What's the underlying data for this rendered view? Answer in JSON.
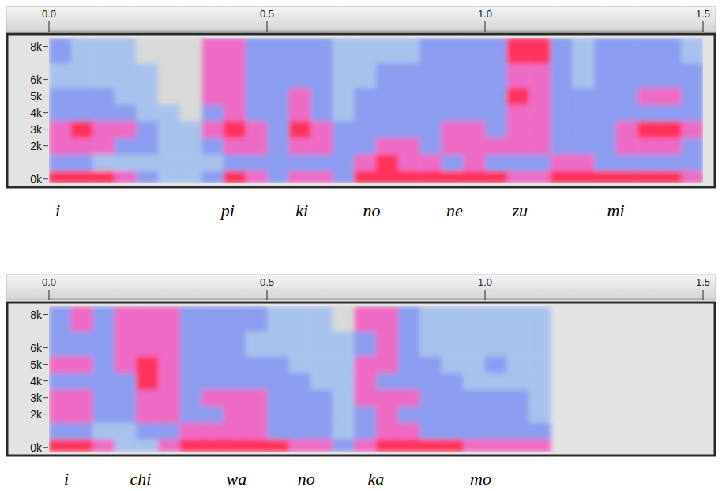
{
  "chart_data": [
    {
      "type": "heatmap",
      "xlim": [
        0,
        1.5
      ],
      "xticks": [
        {
          "value": 0,
          "label": "0.0"
        },
        {
          "value": 0.5,
          "label": "0.5"
        },
        {
          "value": 1.0,
          "label": "1.0"
        },
        {
          "value": 1.5,
          "label": "1.5"
        }
      ],
      "ylim": [
        -250,
        8500
      ],
      "yticks": [
        {
          "value": 0,
          "label": "0k"
        },
        {
          "value": 2000,
          "label": "2k"
        },
        {
          "value": 3000,
          "label": "3k"
        },
        {
          "value": 4000,
          "label": "4k"
        },
        {
          "value": 5000,
          "label": "5k"
        },
        {
          "value": 6000,
          "label": "6k"
        },
        {
          "value": 8000,
          "label": "8k"
        }
      ],
      "x_edges": [
        0,
        0.05,
        0.1,
        0.15,
        0.2,
        0.25,
        0.3,
        0.35,
        0.4,
        0.45,
        0.5,
        0.55,
        0.6,
        0.65,
        0.7,
        0.75,
        0.8,
        0.85,
        0.9,
        0.95,
        1.0,
        1.05,
        1.1,
        1.15,
        1.2,
        1.25,
        1.3,
        1.35,
        1.4,
        1.45,
        1.5
      ],
      "y_edges": [
        -250,
        500,
        1500,
        2500,
        3500,
        4500,
        5500,
        7000,
        8500
      ],
      "zlim": [
        0,
        4
      ],
      "values": [
        [
          4,
          4,
          4,
          3,
          2,
          1,
          1,
          2,
          4,
          3,
          2,
          3,
          3,
          2,
          4,
          4,
          4,
          4,
          4,
          4,
          4,
          3,
          3,
          4,
          4,
          4,
          4,
          4,
          4,
          3
        ],
        [
          2,
          2,
          1,
          1,
          1,
          1,
          1,
          1,
          2,
          2,
          2,
          2,
          2,
          2,
          3,
          4,
          3,
          3,
          2,
          3,
          2,
          2,
          2,
          3,
          3,
          2,
          2,
          2,
          2,
          2
        ],
        [
          3,
          3,
          3,
          2,
          2,
          1,
          1,
          2,
          3,
          3,
          2,
          3,
          3,
          2,
          2,
          3,
          3,
          2,
          3,
          3,
          3,
          3,
          3,
          2,
          2,
          2,
          3,
          3,
          3,
          2
        ],
        [
          3,
          4,
          3,
          3,
          2,
          1,
          1,
          3,
          4,
          3,
          2,
          4,
          3,
          2,
          2,
          2,
          2,
          2,
          3,
          3,
          2,
          3,
          3,
          2,
          2,
          2,
          3,
          4,
          4,
          3
        ],
        [
          2,
          2,
          2,
          2,
          1,
          1,
          0,
          2,
          3,
          2,
          2,
          3,
          2,
          1,
          2,
          2,
          2,
          2,
          2,
          2,
          2,
          3,
          3,
          2,
          2,
          2,
          2,
          2,
          2,
          2
        ],
        [
          2,
          2,
          2,
          1,
          1,
          0,
          0,
          3,
          3,
          2,
          2,
          3,
          2,
          1,
          2,
          2,
          2,
          2,
          2,
          2,
          2,
          4,
          3,
          2,
          2,
          2,
          2,
          3,
          3,
          2
        ],
        [
          1,
          1,
          1,
          1,
          1,
          0,
          0,
          3,
          3,
          2,
          2,
          2,
          2,
          1,
          1,
          2,
          2,
          2,
          2,
          2,
          2,
          3,
          3,
          2,
          1,
          2,
          2,
          2,
          2,
          2
        ],
        [
          2,
          1,
          1,
          1,
          0,
          0,
          0,
          3,
          3,
          2,
          2,
          2,
          2,
          1,
          1,
          1,
          1,
          2,
          2,
          2,
          2,
          4,
          4,
          2,
          1,
          2,
          2,
          2,
          2,
          1
        ]
      ],
      "annotations": [
        {
          "text": "i",
          "x": 0.02
        },
        {
          "text": "pi",
          "x": 0.41
        },
        {
          "text": "ki",
          "x": 0.58
        },
        {
          "text": "no",
          "x": 0.74
        },
        {
          "text": "ne",
          "x": 0.93
        },
        {
          "text": "zu",
          "x": 1.08
        },
        {
          "text": "mi",
          "x": 1.3
        }
      ]
    },
    {
      "type": "heatmap",
      "xlim": [
        0,
        1.5
      ],
      "xticks": [
        {
          "value": 0,
          "label": "0.0"
        },
        {
          "value": 0.5,
          "label": "0.5"
        },
        {
          "value": 1.0,
          "label": "1.0"
        },
        {
          "value": 1.5,
          "label": "1.5"
        }
      ],
      "ylim": [
        -250,
        8500
      ],
      "yticks": [
        {
          "value": 0,
          "label": "0k"
        },
        {
          "value": 2000,
          "label": "2k"
        },
        {
          "value": 3000,
          "label": "3k"
        },
        {
          "value": 4000,
          "label": "4k"
        },
        {
          "value": 5000,
          "label": "5k"
        },
        {
          "value": 6000,
          "label": "6k"
        },
        {
          "value": 8000,
          "label": "8k"
        }
      ],
      "x_edges": [
        0,
        0.05,
        0.1,
        0.15,
        0.2,
        0.25,
        0.3,
        0.35,
        0.4,
        0.45,
        0.5,
        0.55,
        0.6,
        0.65,
        0.7,
        0.75,
        0.8,
        0.85,
        0.9,
        0.95,
        1.0,
        1.05,
        1.1,
        1.15,
        1.2,
        1.25,
        1.3,
        1.35,
        1.4,
        1.45,
        1.5
      ],
      "y_edges": [
        -250,
        500,
        1500,
        2500,
        3500,
        4500,
        5500,
        7000,
        8500
      ],
      "zlim": [
        0,
        4
      ],
      "values": [
        [
          4,
          4,
          3,
          1,
          1,
          3,
          4,
          4,
          4,
          4,
          4,
          3,
          3,
          2,
          3,
          4,
          4,
          4,
          4,
          3,
          3,
          3,
          3,
          null,
          null,
          null,
          null,
          null,
          null,
          null
        ],
        [
          2,
          2,
          1,
          1,
          2,
          2,
          3,
          3,
          3,
          3,
          2,
          2,
          2,
          1,
          2,
          3,
          3,
          2,
          2,
          2,
          2,
          2,
          2,
          null,
          null,
          null,
          null,
          null,
          null,
          null
        ],
        [
          3,
          3,
          2,
          2,
          3,
          3,
          2,
          2,
          3,
          3,
          2,
          2,
          2,
          1,
          2,
          3,
          2,
          2,
          2,
          2,
          2,
          2,
          1,
          null,
          null,
          null,
          null,
          null,
          null,
          null
        ],
        [
          3,
          3,
          2,
          2,
          3,
          3,
          2,
          3,
          3,
          3,
          2,
          2,
          2,
          1,
          3,
          3,
          3,
          2,
          2,
          2,
          2,
          2,
          1,
          null,
          null,
          null,
          null,
          null,
          null,
          null
        ],
        [
          2,
          2,
          2,
          2,
          4,
          3,
          2,
          2,
          2,
          2,
          2,
          2,
          1,
          1,
          3,
          2,
          2,
          2,
          2,
          1,
          1,
          1,
          1,
          null,
          null,
          null,
          null,
          null,
          null,
          null
        ],
        [
          3,
          3,
          2,
          3,
          4,
          3,
          2,
          2,
          2,
          2,
          2,
          1,
          1,
          1,
          3,
          3,
          2,
          2,
          1,
          1,
          2,
          1,
          1,
          null,
          null,
          null,
          null,
          null,
          null,
          null
        ],
        [
          2,
          2,
          2,
          3,
          3,
          3,
          2,
          2,
          2,
          1,
          1,
          1,
          1,
          1,
          2,
          3,
          2,
          1,
          1,
          1,
          1,
          1,
          1,
          null,
          null,
          null,
          null,
          null,
          null,
          null
        ],
        [
          2,
          3,
          2,
          3,
          3,
          3,
          2,
          2,
          2,
          2,
          1,
          1,
          1,
          0,
          3,
          3,
          2,
          1,
          1,
          1,
          1,
          1,
          1,
          null,
          null,
          null,
          null,
          null,
          null,
          null
        ]
      ],
      "annotations": [
        {
          "text": "i",
          "x": 0.04
        },
        {
          "text": "chi",
          "x": 0.21
        },
        {
          "text": "wa",
          "x": 0.43
        },
        {
          "text": "no",
          "x": 0.59
        },
        {
          "text": "ka",
          "x": 0.75
        },
        {
          "text": "mo",
          "x": 0.99
        }
      ]
    }
  ]
}
